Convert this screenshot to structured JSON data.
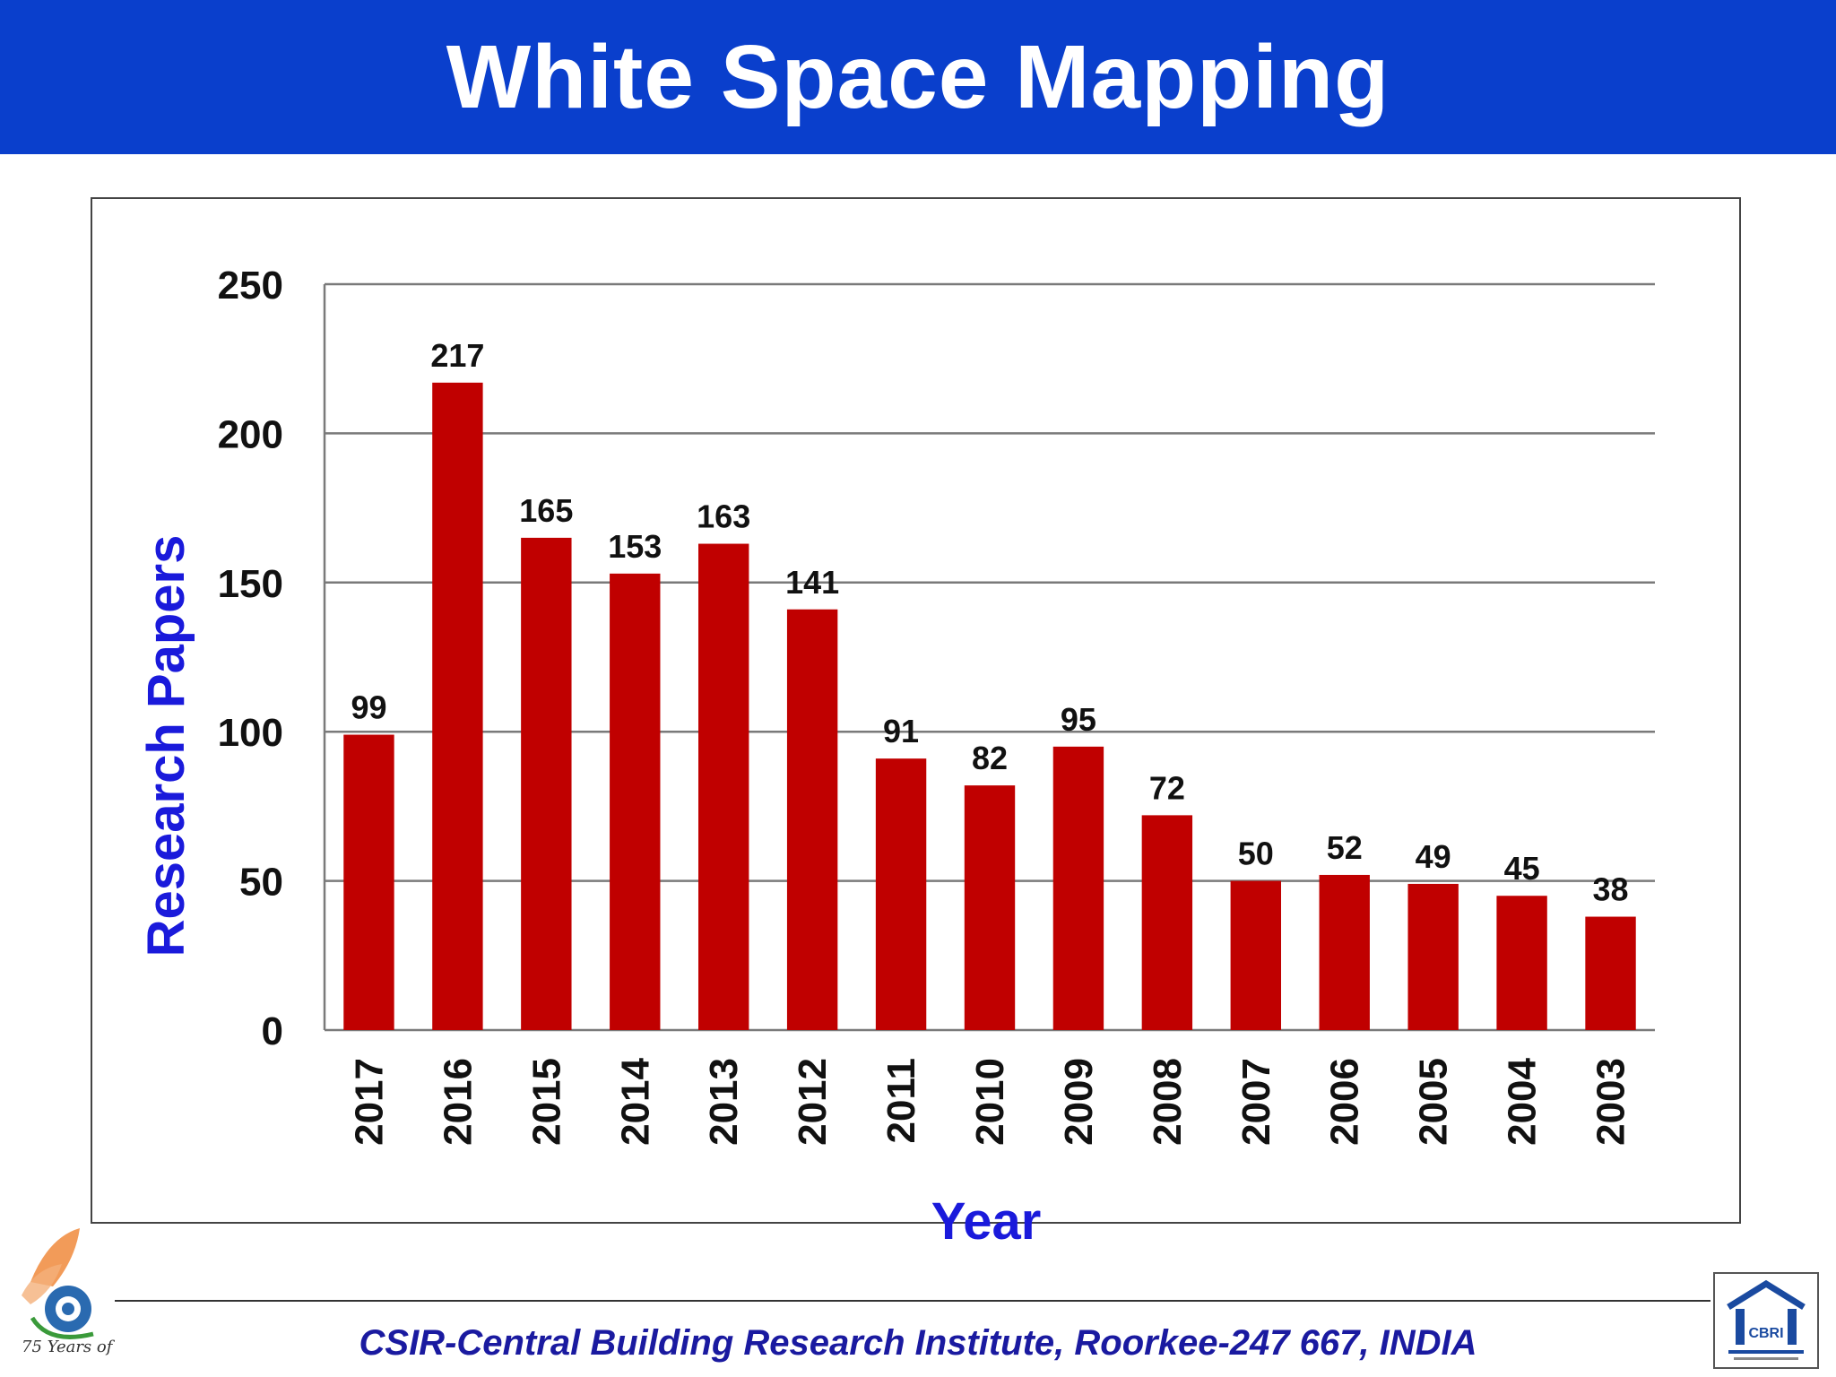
{
  "slide": {
    "title": "White Space Mapping",
    "footer": "CSIR-Central Building Research Institute, Roorkee-247 667, INDIA",
    "colors": {
      "title_bar": "#0a3fcc",
      "bar": "#c00000",
      "axis_title": "#1a1adb",
      "footer": "#1a1aa0"
    }
  },
  "logos": {
    "left": {
      "icon": "csir-75-years-logo",
      "text": "75 Years of"
    },
    "right": {
      "icon": "cbri-logo",
      "text": "CBRI"
    }
  },
  "chart_data": {
    "type": "bar",
    "categories": [
      "2017",
      "2016",
      "2015",
      "2014",
      "2013",
      "2012",
      "2011",
      "2010",
      "2009",
      "2008",
      "2007",
      "2006",
      "2005",
      "2004",
      "2003"
    ],
    "values": [
      99,
      217,
      165,
      153,
      163,
      141,
      91,
      82,
      95,
      72,
      50,
      52,
      49,
      45,
      38
    ],
    "xlabel": "Year",
    "ylabel": "Research Papers",
    "ylim": [
      0,
      250
    ],
    "yticks": [
      0,
      50,
      100,
      150,
      200,
      250
    ],
    "grid": true,
    "data_labels": true,
    "legend": "none"
  }
}
